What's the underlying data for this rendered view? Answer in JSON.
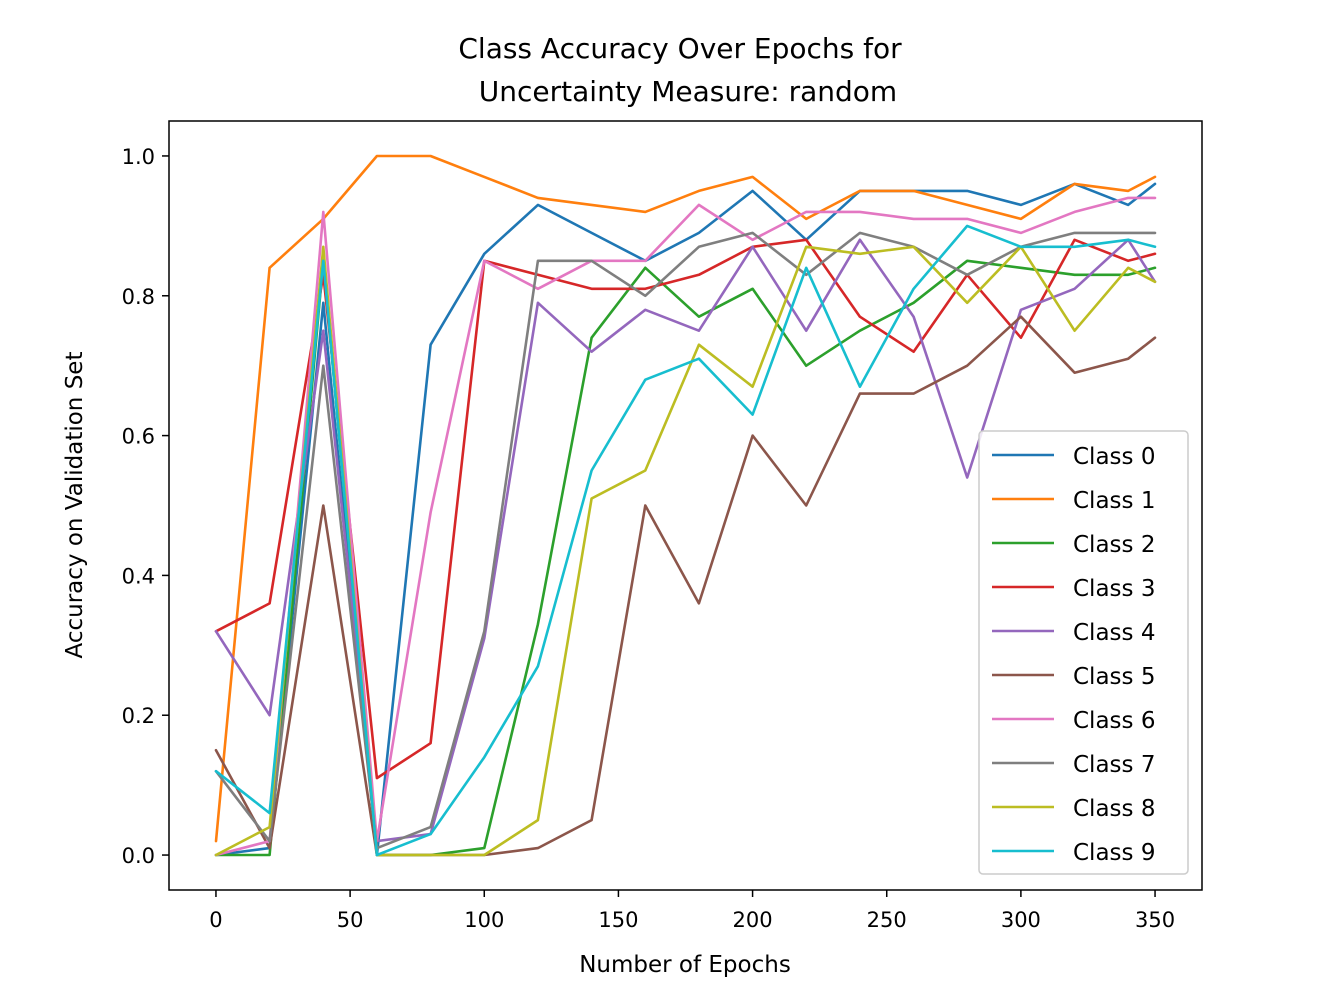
{
  "chart_data": {
    "type": "line",
    "title": [
      "Class Accuracy Over Epochs for",
      "Uncertainty Measure: random"
    ],
    "xlabel": "Number of Epochs",
    "ylabel": "Accuracy on Validation Set",
    "xlim": [
      -17.5,
      367.5
    ],
    "ylim": [
      -0.05,
      1.05
    ],
    "xticks": [
      0,
      50,
      100,
      150,
      200,
      250,
      300,
      350
    ],
    "yticks": [
      0.0,
      0.2,
      0.4,
      0.6,
      0.8,
      1.0
    ],
    "ytick_labels": [
      "0.0",
      "0.2",
      "0.4",
      "0.6",
      "0.8",
      "1.0"
    ],
    "grid": false,
    "legend_position": "lower right",
    "x": [
      0,
      20,
      40,
      60,
      80,
      100,
      120,
      140,
      160,
      180,
      200,
      220,
      240,
      260,
      280,
      300,
      320,
      340,
      350
    ],
    "series": [
      {
        "name": "Class 0",
        "color": "#1f77b4",
        "values": [
          0.0,
          0.01,
          0.79,
          0.0,
          0.73,
          0.86,
          0.93,
          0.89,
          0.85,
          0.89,
          0.95,
          0.88,
          0.95,
          0.95,
          0.95,
          0.93,
          0.96,
          0.93,
          0.96
        ]
      },
      {
        "name": "Class 1",
        "color": "#ff7f0e",
        "values": [
          0.02,
          0.84,
          0.91,
          1.0,
          1.0,
          0.97,
          0.94,
          0.93,
          0.92,
          0.95,
          0.97,
          0.91,
          0.95,
          0.95,
          0.93,
          0.91,
          0.96,
          0.95,
          0.97
        ]
      },
      {
        "name": "Class 2",
        "color": "#2ca02c",
        "values": [
          0.0,
          0.0,
          0.85,
          0.0,
          0.0,
          0.01,
          0.33,
          0.74,
          0.84,
          0.77,
          0.81,
          0.7,
          0.75,
          0.79,
          0.85,
          0.84,
          0.83,
          0.83,
          0.84
        ]
      },
      {
        "name": "Class 3",
        "color": "#d62728",
        "values": [
          0.32,
          0.36,
          0.83,
          0.11,
          0.16,
          0.85,
          0.83,
          0.81,
          0.81,
          0.83,
          0.87,
          0.88,
          0.77,
          0.72,
          0.83,
          0.74,
          0.88,
          0.85,
          0.86
        ]
      },
      {
        "name": "Class 4",
        "color": "#9467bd",
        "values": [
          0.32,
          0.2,
          0.75,
          0.02,
          0.03,
          0.31,
          0.79,
          0.72,
          0.78,
          0.75,
          0.87,
          0.75,
          0.88,
          0.77,
          0.54,
          0.78,
          0.81,
          0.88,
          0.82
        ]
      },
      {
        "name": "Class 5",
        "color": "#8c564b",
        "values": [
          0.15,
          0.01,
          0.5,
          0.0,
          0.0,
          0.0,
          0.01,
          0.05,
          0.5,
          0.36,
          0.6,
          0.5,
          0.66,
          0.66,
          0.7,
          0.77,
          0.69,
          0.71,
          0.74
        ]
      },
      {
        "name": "Class 6",
        "color": "#e377c2",
        "values": [
          0.0,
          0.02,
          0.92,
          0.02,
          0.49,
          0.85,
          0.81,
          0.85,
          0.85,
          0.93,
          0.88,
          0.92,
          0.92,
          0.91,
          0.91,
          0.89,
          0.92,
          0.94,
          0.94
        ]
      },
      {
        "name": "Class 7",
        "color": "#7f7f7f",
        "values": [
          0.12,
          0.02,
          0.7,
          0.01,
          0.04,
          0.32,
          0.85,
          0.85,
          0.8,
          0.87,
          0.89,
          0.83,
          0.89,
          0.87,
          0.83,
          0.87,
          0.89,
          0.89,
          0.89
        ]
      },
      {
        "name": "Class 8",
        "color": "#bcbd22",
        "values": [
          0.0,
          0.04,
          0.87,
          0.0,
          0.0,
          0.0,
          0.05,
          0.51,
          0.55,
          0.73,
          0.67,
          0.87,
          0.86,
          0.87,
          0.79,
          0.87,
          0.75,
          0.84,
          0.82
        ]
      },
      {
        "name": "Class 9",
        "color": "#17becf",
        "values": [
          0.12,
          0.06,
          0.85,
          0.0,
          0.03,
          0.14,
          0.27,
          0.55,
          0.68,
          0.71,
          0.63,
          0.84,
          0.67,
          0.81,
          0.9,
          0.87,
          0.87,
          0.88,
          0.87
        ]
      }
    ]
  }
}
